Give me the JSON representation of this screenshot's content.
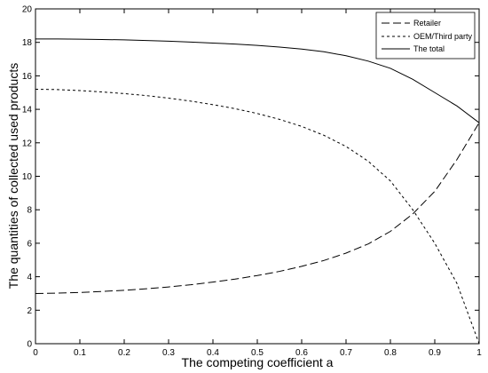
{
  "chart_data": {
    "type": "line",
    "xlabel": "The competing coefficient a",
    "ylabel": "The quantities of collected used products",
    "xlim": [
      0,
      1
    ],
    "ylim": [
      0,
      20
    ],
    "xticks": [
      0,
      0.1,
      0.2,
      0.3,
      0.4,
      0.5,
      0.6,
      0.7,
      0.8,
      0.9,
      1
    ],
    "xtick_labels": [
      "0",
      "0.1",
      "0.2",
      "0.3",
      "0.4",
      "0.5",
      "0.6",
      "0.7",
      "0.8",
      "0.9",
      "1"
    ],
    "yticks": [
      0,
      2,
      4,
      6,
      8,
      10,
      12,
      14,
      16,
      18,
      20
    ],
    "ytick_labels": [
      "0",
      "2",
      "4",
      "6",
      "8",
      "10",
      "12",
      "14",
      "16",
      "18",
      "20"
    ],
    "grid": false,
    "legend_position": "top-right",
    "x": [
      0,
      0.05,
      0.1,
      0.15,
      0.2,
      0.25,
      0.3,
      0.35,
      0.4,
      0.45,
      0.5,
      0.55,
      0.6,
      0.65,
      0.7,
      0.75,
      0.8,
      0.85,
      0.9,
      0.95,
      1
    ],
    "series": [
      {
        "name": "Retailer",
        "dash": "long-dash",
        "values": [
          3.0,
          3.02,
          3.06,
          3.12,
          3.19,
          3.28,
          3.39,
          3.52,
          3.68,
          3.86,
          4.07,
          4.32,
          4.62,
          4.97,
          5.41,
          5.96,
          6.71,
          7.74,
          9.1,
          11.0,
          13.2
        ]
      },
      {
        "name": "OEM/Third party",
        "dash": "short-dash",
        "values": [
          15.2,
          15.18,
          15.12,
          15.04,
          14.94,
          14.82,
          14.67,
          14.49,
          14.28,
          14.04,
          13.75,
          13.4,
          12.98,
          12.45,
          11.78,
          10.9,
          9.72,
          8.02,
          6.0,
          3.6,
          0.0
        ]
      },
      {
        "name": "The total",
        "dash": "solid",
        "values": [
          18.2,
          18.2,
          18.19,
          18.17,
          18.15,
          18.11,
          18.07,
          18.02,
          17.96,
          17.9,
          17.82,
          17.72,
          17.6,
          17.44,
          17.2,
          16.88,
          16.45,
          15.8,
          15.0,
          14.2,
          13.2
        ]
      }
    ]
  }
}
